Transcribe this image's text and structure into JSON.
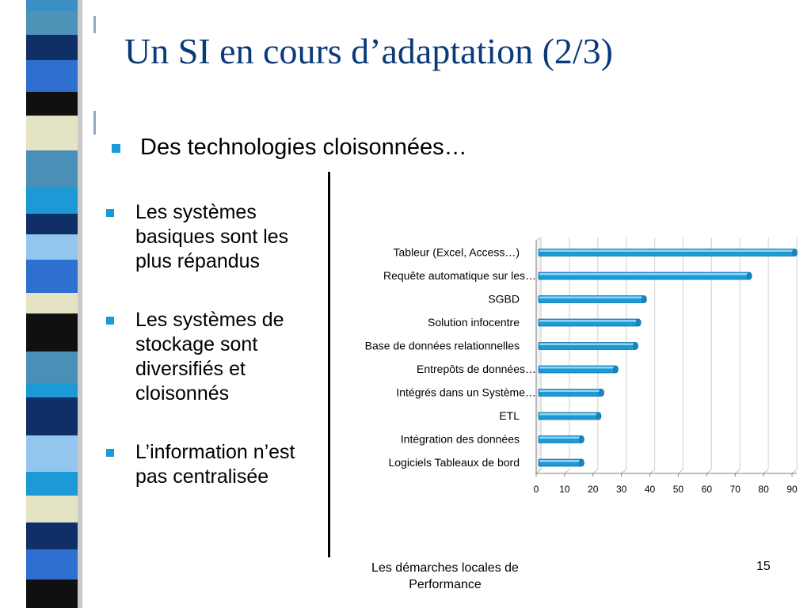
{
  "slide": {
    "title": "Un SI en cours d’adaptation (2/3)",
    "main_bullet": "Des technologies cloisonnées…",
    "bullets": [
      "Les systèmes basiques sont les plus répandus",
      "Les systèmes de stockage sont diversifiés et cloisonnés",
      "L’information n’est pas centralisée"
    ],
    "footer": "Les démarches locales de Performance",
    "page_number": "15",
    "colors": {
      "title": "#0b3a7a",
      "bullet": "#1c9ad6",
      "bar": "#1c9ad6"
    }
  },
  "chart_data": {
    "type": "bar",
    "orientation": "horizontal",
    "categories": [
      "Tableur (Excel, Access…)",
      "Requête automatique sur les…",
      "SGBD",
      "Solution infocentre",
      "Base de données relationnelles",
      "Entrepôts de données…",
      "Intégrés dans un Système…",
      "ETL",
      "Intégration des données",
      "Logiciels Tableaux de bord"
    ],
    "values": [
      91,
      75,
      38,
      36,
      35,
      28,
      23,
      22,
      16,
      16
    ],
    "xlim": [
      0,
      90
    ],
    "xticks": [
      "0",
      "10",
      "20",
      "30",
      "40",
      "50",
      "60",
      "70",
      "80",
      "90"
    ],
    "title": "",
    "xlabel": "",
    "ylabel": "",
    "grid": true,
    "legend": "none"
  }
}
